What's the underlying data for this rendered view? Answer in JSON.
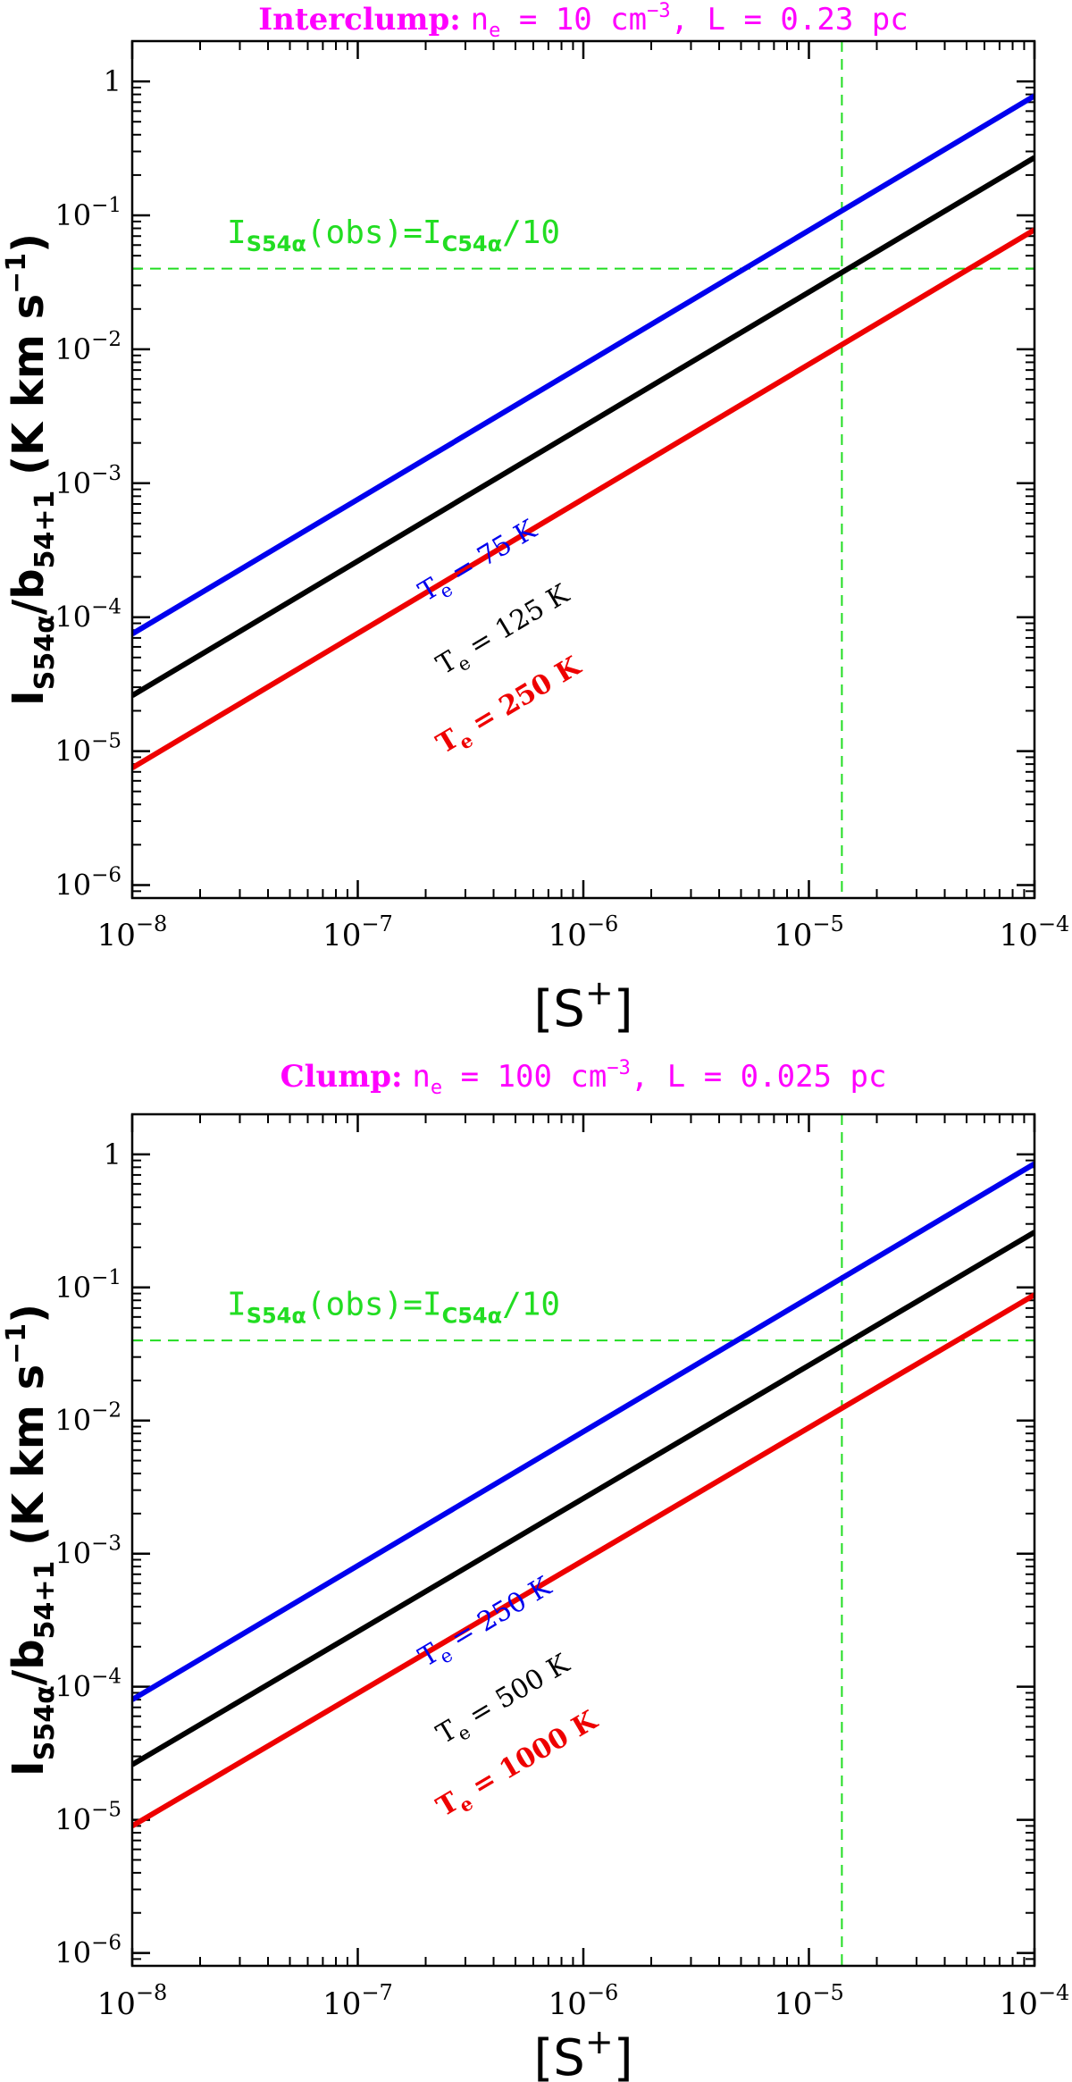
{
  "chart_data": [
    {
      "type": "line",
      "scale": "log-log",
      "title": {
        "prefix": "Interclump:",
        "rest_a": "n",
        "rest_sub": "e",
        "rest_b": " = 10 cm",
        "rest_sup": "−3",
        "rest_c": ", L = 0.23 pc",
        "color": "#ff00ff"
      },
      "xlabel": {
        "main": "[S",
        "sup": "+",
        "end": "]"
      },
      "ylabel": {
        "main": "I",
        "sub1": "S54α",
        "mid": "/b",
        "sub2": "54+1",
        "end": " (K km s",
        "sup": "−1",
        "close": ")"
      },
      "xlim": [
        1e-08,
        0.0001
      ],
      "ylim": [
        8e-07,
        2
      ],
      "xticks": [
        {
          "value": 1e-08,
          "base": "10",
          "exp": "−8"
        },
        {
          "value": 1e-07,
          "base": "10",
          "exp": "−7"
        },
        {
          "value": 1e-06,
          "base": "10",
          "exp": "−6"
        },
        {
          "value": 1e-05,
          "base": "10",
          "exp": "−5"
        },
        {
          "value": 0.0001,
          "base": "10",
          "exp": "−4"
        }
      ],
      "yticks": [
        {
          "value": 1e-06,
          "base": "10",
          "exp": "−6"
        },
        {
          "value": 1e-05,
          "base": "10",
          "exp": "−5"
        },
        {
          "value": 0.0001,
          "base": "10",
          "exp": "−4"
        },
        {
          "value": 0.001,
          "base": "10",
          "exp": "−3"
        },
        {
          "value": 0.01,
          "base": "10",
          "exp": "−2"
        },
        {
          "value": 0.1,
          "base": "10",
          "exp": "−1"
        },
        {
          "value": 1,
          "base": "1",
          "exp": ""
        }
      ],
      "series": [
        {
          "name": "T_e = 75 K",
          "color": "#0000ee",
          "x": [
            1e-08,
            0.0001
          ],
          "y": [
            7.5e-05,
            0.78
          ],
          "label": {
            "main": "T",
            "sub": "e",
            "rest": " = 75 K"
          },
          "label_at": [
            2e-07,
            0.00013
          ]
        },
        {
          "name": "T_e = 125 K",
          "color": "#000000",
          "x": [
            1e-08,
            0.0001
          ],
          "y": [
            2.6e-05,
            0.27
          ],
          "label": {
            "main": "T",
            "sub": "e",
            "rest": " = 125 K"
          },
          "label_at": [
            2.4e-07,
            3.7e-05
          ]
        },
        {
          "name": "T_e = 250 K",
          "color": "#ee0000",
          "x": [
            1e-08,
            0.0001
          ],
          "y": [
            7.5e-06,
            0.078
          ],
          "label": {
            "main": "T",
            "sub": "e",
            "rest": " = 250 K"
          },
          "label_at": [
            2.4e-07,
            9.5e-06
          ]
        }
      ],
      "hline": {
        "y": 0.04,
        "color": "#22dd22",
        "label": {
          "a": "I",
          "sub1": "S54α",
          "b": "(obs)=I",
          "sub2": "C54α",
          "c": "/10"
        },
        "label_at": [
          2e-08,
          0.062
        ]
      },
      "vline": {
        "x": 1.4e-05,
        "color": "#22dd22"
      }
    },
    {
      "type": "line",
      "scale": "log-log",
      "title": {
        "prefix": "Clump:",
        "rest_a": "n",
        "rest_sub": "e",
        "rest_b": " = 100 cm",
        "rest_sup": "−3",
        "rest_c": ", L = 0.025 pc",
        "color": "#ff00ff"
      },
      "xlabel": {
        "main": "[S",
        "sup": "+",
        "end": "]"
      },
      "ylabel": {
        "main": "I",
        "sub1": "S54α",
        "mid": "/b",
        "sub2": "54+1",
        "end": " (K km s",
        "sup": "−1",
        "close": ")"
      },
      "xlim": [
        1e-08,
        0.0001
      ],
      "ylim": [
        8e-07,
        2
      ],
      "xticks": [
        {
          "value": 1e-08,
          "base": "10",
          "exp": "−8"
        },
        {
          "value": 1e-07,
          "base": "10",
          "exp": "−7"
        },
        {
          "value": 1e-06,
          "base": "10",
          "exp": "−6"
        },
        {
          "value": 1e-05,
          "base": "10",
          "exp": "−5"
        },
        {
          "value": 0.0001,
          "base": "10",
          "exp": "−4"
        }
      ],
      "yticks": [
        {
          "value": 1e-06,
          "base": "10",
          "exp": "−6"
        },
        {
          "value": 1e-05,
          "base": "10",
          "exp": "−5"
        },
        {
          "value": 0.0001,
          "base": "10",
          "exp": "−4"
        },
        {
          "value": 0.001,
          "base": "10",
          "exp": "−3"
        },
        {
          "value": 0.01,
          "base": "10",
          "exp": "−2"
        },
        {
          "value": 0.1,
          "base": "10",
          "exp": "−1"
        },
        {
          "value": 1,
          "base": "1",
          "exp": ""
        }
      ],
      "series": [
        {
          "name": "T_e = 250 K",
          "color": "#0000ee",
          "x": [
            1e-08,
            0.0001
          ],
          "y": [
            8e-05,
            0.85
          ],
          "label": {
            "main": "T",
            "sub": "e",
            "rest": " = 250 K"
          },
          "label_at": [
            2e-07,
            0.00014
          ]
        },
        {
          "name": "T_e = 500 K",
          "color": "#000000",
          "x": [
            1e-08,
            0.0001
          ],
          "y": [
            2.6e-05,
            0.26
          ],
          "label": {
            "main": "T",
            "sub": "e",
            "rest": " = 500 K"
          },
          "label_at": [
            2.4e-07,
            3.7e-05
          ]
        },
        {
          "name": "T_e = 1000 K",
          "color": "#ee0000",
          "x": [
            1e-08,
            0.0001
          ],
          "y": [
            9e-06,
            0.088
          ],
          "label": {
            "main": "T",
            "sub": "e",
            "rest": " = 1000 K"
          },
          "label_at": [
            2.4e-07,
            1.05e-05
          ]
        }
      ],
      "hline": {
        "y": 0.04,
        "color": "#22dd22",
        "label": {
          "a": "I",
          "sub1": "S54α",
          "b": "(obs)=I",
          "sub2": "C54α",
          "c": "/10"
        },
        "label_at": [
          2e-08,
          0.062
        ]
      },
      "vline": {
        "x": 1.4e-05,
        "color": "#22dd22"
      }
    }
  ]
}
